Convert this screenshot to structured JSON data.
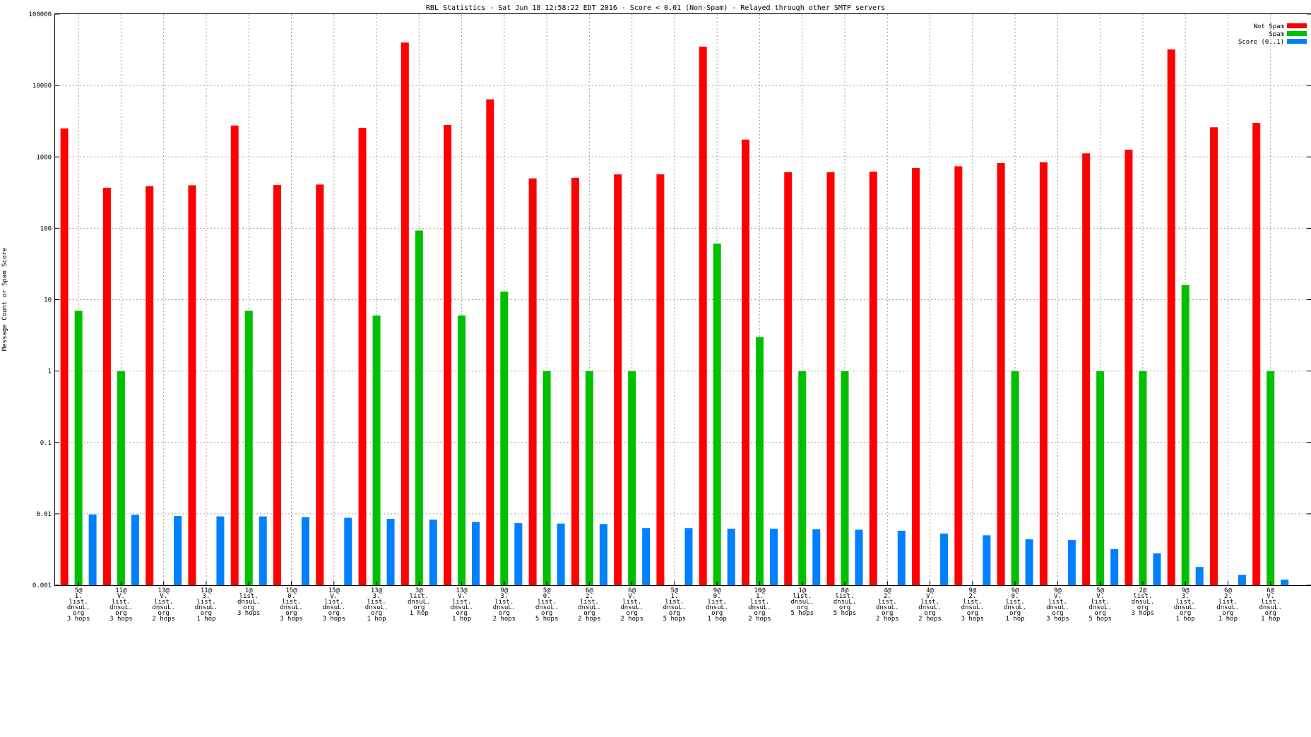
{
  "chart_data": {
    "type": "bar",
    "title": "RBL Statistics - Sat Jun 18 12:58:22 EDT 2016 - Score < 0.01 (Non-Spam) - Relayed through other SMTP servers",
    "xlabel": "",
    "ylabel": "Message Count or Spam Score",
    "yscale": "log",
    "ylim": [
      0.001,
      100000
    ],
    "yticks": [
      "0.001",
      "0.01",
      "0.1",
      "1",
      "10",
      "100",
      "1000",
      "10000",
      "100000"
    ],
    "grid": true,
    "legend_position": "top-right",
    "categories": [
      [
        "5@",
        "1.",
        "list.",
        "dnsuL.",
        "org",
        "3 hops"
      ],
      [
        "11@",
        "V.",
        "list.",
        "dnsuL.",
        "org",
        "3 hops"
      ],
      [
        "13@",
        "V.",
        "list.",
        "dnsuL.",
        "org",
        "2 hops"
      ],
      [
        "11@",
        "3.",
        "list.",
        "dnsuL.",
        "org",
        "1 hop"
      ],
      [
        "1@",
        "list.",
        "dnsuL.",
        "org",
        "3 hops"
      ],
      [
        "15@",
        "0.",
        "list.",
        "dnsuL.",
        "org",
        "3 hops"
      ],
      [
        "15@",
        "V.",
        "list.",
        "dnsuL.",
        "org",
        "3 hops"
      ],
      [
        "13@",
        "3.",
        "list.",
        "dnsuL.",
        "org",
        "1 hop"
      ],
      [
        "3@",
        "list.",
        "dnsuL.",
        "org",
        "1 hop"
      ],
      [
        "13@",
        "V.",
        "list.",
        "dnsuL.",
        "org",
        "1 hop"
      ],
      [
        "9@",
        "3.",
        "list.",
        "dnsuL.",
        "org",
        "2 hops"
      ],
      [
        "5@",
        "0.",
        "list.",
        "dnsuL.",
        "org",
        "5 hops"
      ],
      [
        "6@",
        "2.",
        "list.",
        "dnsuL.",
        "org",
        "2 hops"
      ],
      [
        "6@",
        "V.",
        "list.",
        "dnsuL.",
        "org",
        "2 hops"
      ],
      [
        "5@",
        "1.",
        "list.",
        "dnsuL.",
        "org",
        "5 hops"
      ],
      [
        "9@",
        "0.",
        "list.",
        "dnsuL.",
        "org",
        "1 hop"
      ],
      [
        "10@",
        "1.",
        "list.",
        "dnsuL.",
        "org",
        "2 hops"
      ],
      [
        "1@",
        "list.",
        "dnsuL.",
        "org",
        "5 hops"
      ],
      [
        "8@",
        "list.",
        "dnsuL.",
        "org",
        "5 hops"
      ],
      [
        "4@",
        "2.",
        "list.",
        "dnsuL.",
        "org",
        "2 hops"
      ],
      [
        "4@",
        "V.",
        "list.",
        "dnsuL.",
        "org",
        "2 hops"
      ],
      [
        "9@",
        "2.",
        "list.",
        "dnsuL.",
        "org",
        "3 hops"
      ],
      [
        "9@",
        "0.",
        "list.",
        "dnsuL.",
        "org",
        "1 hop"
      ],
      [
        "9@",
        "V.",
        "list.",
        "dnsuL.",
        "org",
        "3 hops"
      ],
      [
        "5@",
        "V.",
        "list.",
        "dnsuL.",
        "org",
        "5 hops"
      ],
      [
        "2@",
        "list.",
        "dnsuL.",
        "org",
        "3 hops"
      ],
      [
        "9@",
        "3.",
        "list.",
        "dnsuL.",
        "org",
        "1 hop"
      ],
      [
        "6@",
        "2.",
        "list.",
        "dnsuL.",
        "org",
        "1 hop"
      ],
      [
        "6@",
        "V.",
        "list.",
        "dnsuL.",
        "org",
        "1 hop"
      ]
    ],
    "series": [
      {
        "name": "Not Spam",
        "color": "#ff0000",
        "values": [
          2500,
          370,
          390,
          400,
          2750,
          405,
          410,
          2560,
          40000,
          2800,
          6400,
          500,
          510,
          570,
          570,
          35000,
          1750,
          610,
          610,
          620,
          700,
          740,
          820,
          840,
          1120,
          1260,
          32000,
          2600,
          3000
        ]
      },
      {
        "name": "Spam",
        "color": "#00c000",
        "values": [
          7,
          1,
          0,
          0,
          7,
          0,
          0,
          6,
          93,
          6,
          13,
          1,
          1,
          1,
          0,
          61,
          3,
          1,
          1,
          0,
          0,
          0,
          1,
          0,
          1,
          1,
          16,
          0,
          1
        ]
      },
      {
        "name": "Score (0..1)",
        "color": "#0080ff",
        "values": [
          0.0098,
          0.0097,
          0.0093,
          0.0092,
          0.0092,
          0.009,
          0.0088,
          0.0085,
          0.0083,
          0.0077,
          0.0074,
          0.0073,
          0.0072,
          0.0063,
          0.0063,
          0.0062,
          0.0062,
          0.0061,
          0.006,
          0.0058,
          0.0053,
          0.005,
          0.0044,
          0.0043,
          0.0032,
          0.0028,
          0.0018,
          0.0014,
          0.0012
        ]
      }
    ]
  }
}
